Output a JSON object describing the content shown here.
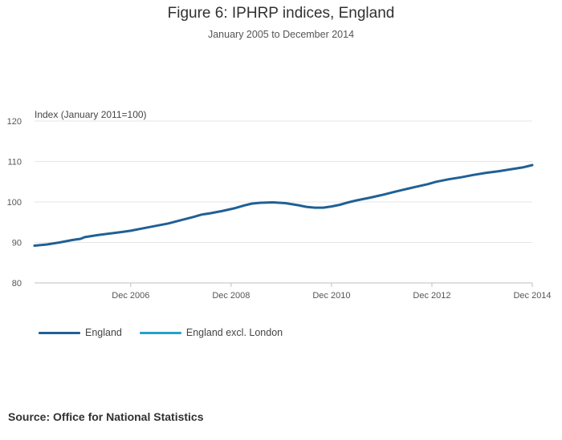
{
  "header": {
    "title": "Figure 6: IPHRP indices, England",
    "subtitle": "January 2005 to December 2014"
  },
  "source": "Source: Office for National Statistics",
  "colors": {
    "england": "#206095",
    "england_excl_london": "#27a0cc",
    "grid": "#e6e6e6",
    "axis_text": "#555555"
  },
  "chart_data": {
    "type": "line",
    "title": "Figure 6: IPHRP indices, England",
    "subtitle": "January 2005 to December 2014",
    "ylabel": "Index (January 2011=100)",
    "xlabel": "",
    "ylim": [
      80,
      120
    ],
    "y_ticks": [
      80,
      90,
      100,
      110,
      120
    ],
    "x_ticks": [
      "Dec 2006",
      "Dec 2008",
      "Dec 2010",
      "Dec 2012",
      "Dec 2014"
    ],
    "x_tick_months": [
      23,
      47,
      71,
      95,
      119
    ],
    "x_range_months": [
      0,
      119
    ],
    "grid": true,
    "legend_position": "bottom-left",
    "series": [
      {
        "name": "England",
        "color": "#206095",
        "points": [
          [
            0,
            89.2
          ],
          [
            3,
            89.5
          ],
          [
            6,
            90.0
          ],
          [
            9,
            90.6
          ],
          [
            11,
            90.9
          ],
          [
            12,
            91.3
          ],
          [
            15,
            91.8
          ],
          [
            18,
            92.2
          ],
          [
            21,
            92.6
          ],
          [
            23,
            92.9
          ],
          [
            26,
            93.5
          ],
          [
            29,
            94.1
          ],
          [
            32,
            94.7
          ],
          [
            35,
            95.5
          ],
          [
            38,
            96.3
          ],
          [
            40,
            96.9
          ],
          [
            42,
            97.2
          ],
          [
            45,
            97.8
          ],
          [
            48,
            98.5
          ],
          [
            50,
            99.1
          ],
          [
            52,
            99.6
          ],
          [
            54,
            99.8
          ],
          [
            57,
            99.9
          ],
          [
            60,
            99.7
          ],
          [
            63,
            99.2
          ],
          [
            65,
            98.8
          ],
          [
            67,
            98.6
          ],
          [
            69,
            98.6
          ],
          [
            71,
            98.9
          ],
          [
            73,
            99.3
          ],
          [
            75,
            99.9
          ],
          [
            77,
            100.4
          ],
          [
            80,
            101.0
          ],
          [
            83,
            101.7
          ],
          [
            86,
            102.5
          ],
          [
            88,
            103.0
          ],
          [
            91,
            103.7
          ],
          [
            94,
            104.4
          ],
          [
            96,
            105.0
          ],
          [
            99,
            105.6
          ],
          [
            102,
            106.1
          ],
          [
            105,
            106.7
          ],
          [
            108,
            107.2
          ],
          [
            111,
            107.6
          ],
          [
            114,
            108.1
          ],
          [
            117,
            108.6
          ],
          [
            119,
            109.1
          ]
        ]
      },
      {
        "name": "England excl. London",
        "color": "#27a0cc",
        "points": []
      }
    ]
  }
}
